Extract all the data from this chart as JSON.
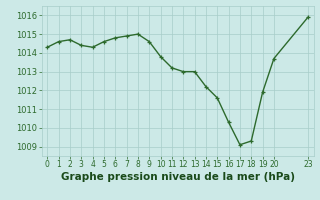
{
  "x": [
    0,
    1,
    2,
    3,
    4,
    5,
    6,
    7,
    8,
    9,
    10,
    11,
    12,
    13,
    14,
    15,
    16,
    17,
    18,
    19,
    20,
    23
  ],
  "y": [
    1014.3,
    1014.6,
    1014.7,
    1014.4,
    1014.3,
    1014.6,
    1014.8,
    1014.9,
    1015.0,
    1014.6,
    1013.8,
    1013.2,
    1013.0,
    1013.0,
    1012.2,
    1011.6,
    1010.3,
    1009.1,
    1009.3,
    1011.9,
    1013.7,
    1015.9
  ],
  "line_color": "#2d6a2d",
  "marker": "+",
  "bg_color": "#cce9e7",
  "grid_color": "#a8cdc9",
  "xlabel": "Graphe pression niveau de la mer (hPa)",
  "xlabel_color": "#1a4a1a",
  "xlabel_fontsize": 7.5,
  "ylim": [
    1008.5,
    1016.5
  ],
  "xlim": [
    -0.5,
    23.5
  ],
  "yticks": [
    1009,
    1010,
    1011,
    1012,
    1013,
    1014,
    1015,
    1016
  ],
  "xticks": [
    0,
    1,
    2,
    3,
    4,
    5,
    6,
    7,
    8,
    9,
    10,
    11,
    12,
    13,
    14,
    15,
    16,
    17,
    18,
    19,
    20,
    23
  ],
  "tick_fontsize": 5.5,
  "ytick_fontsize": 6.0,
  "line_width": 1.0,
  "marker_size": 3.5,
  "marker_ew": 0.9
}
